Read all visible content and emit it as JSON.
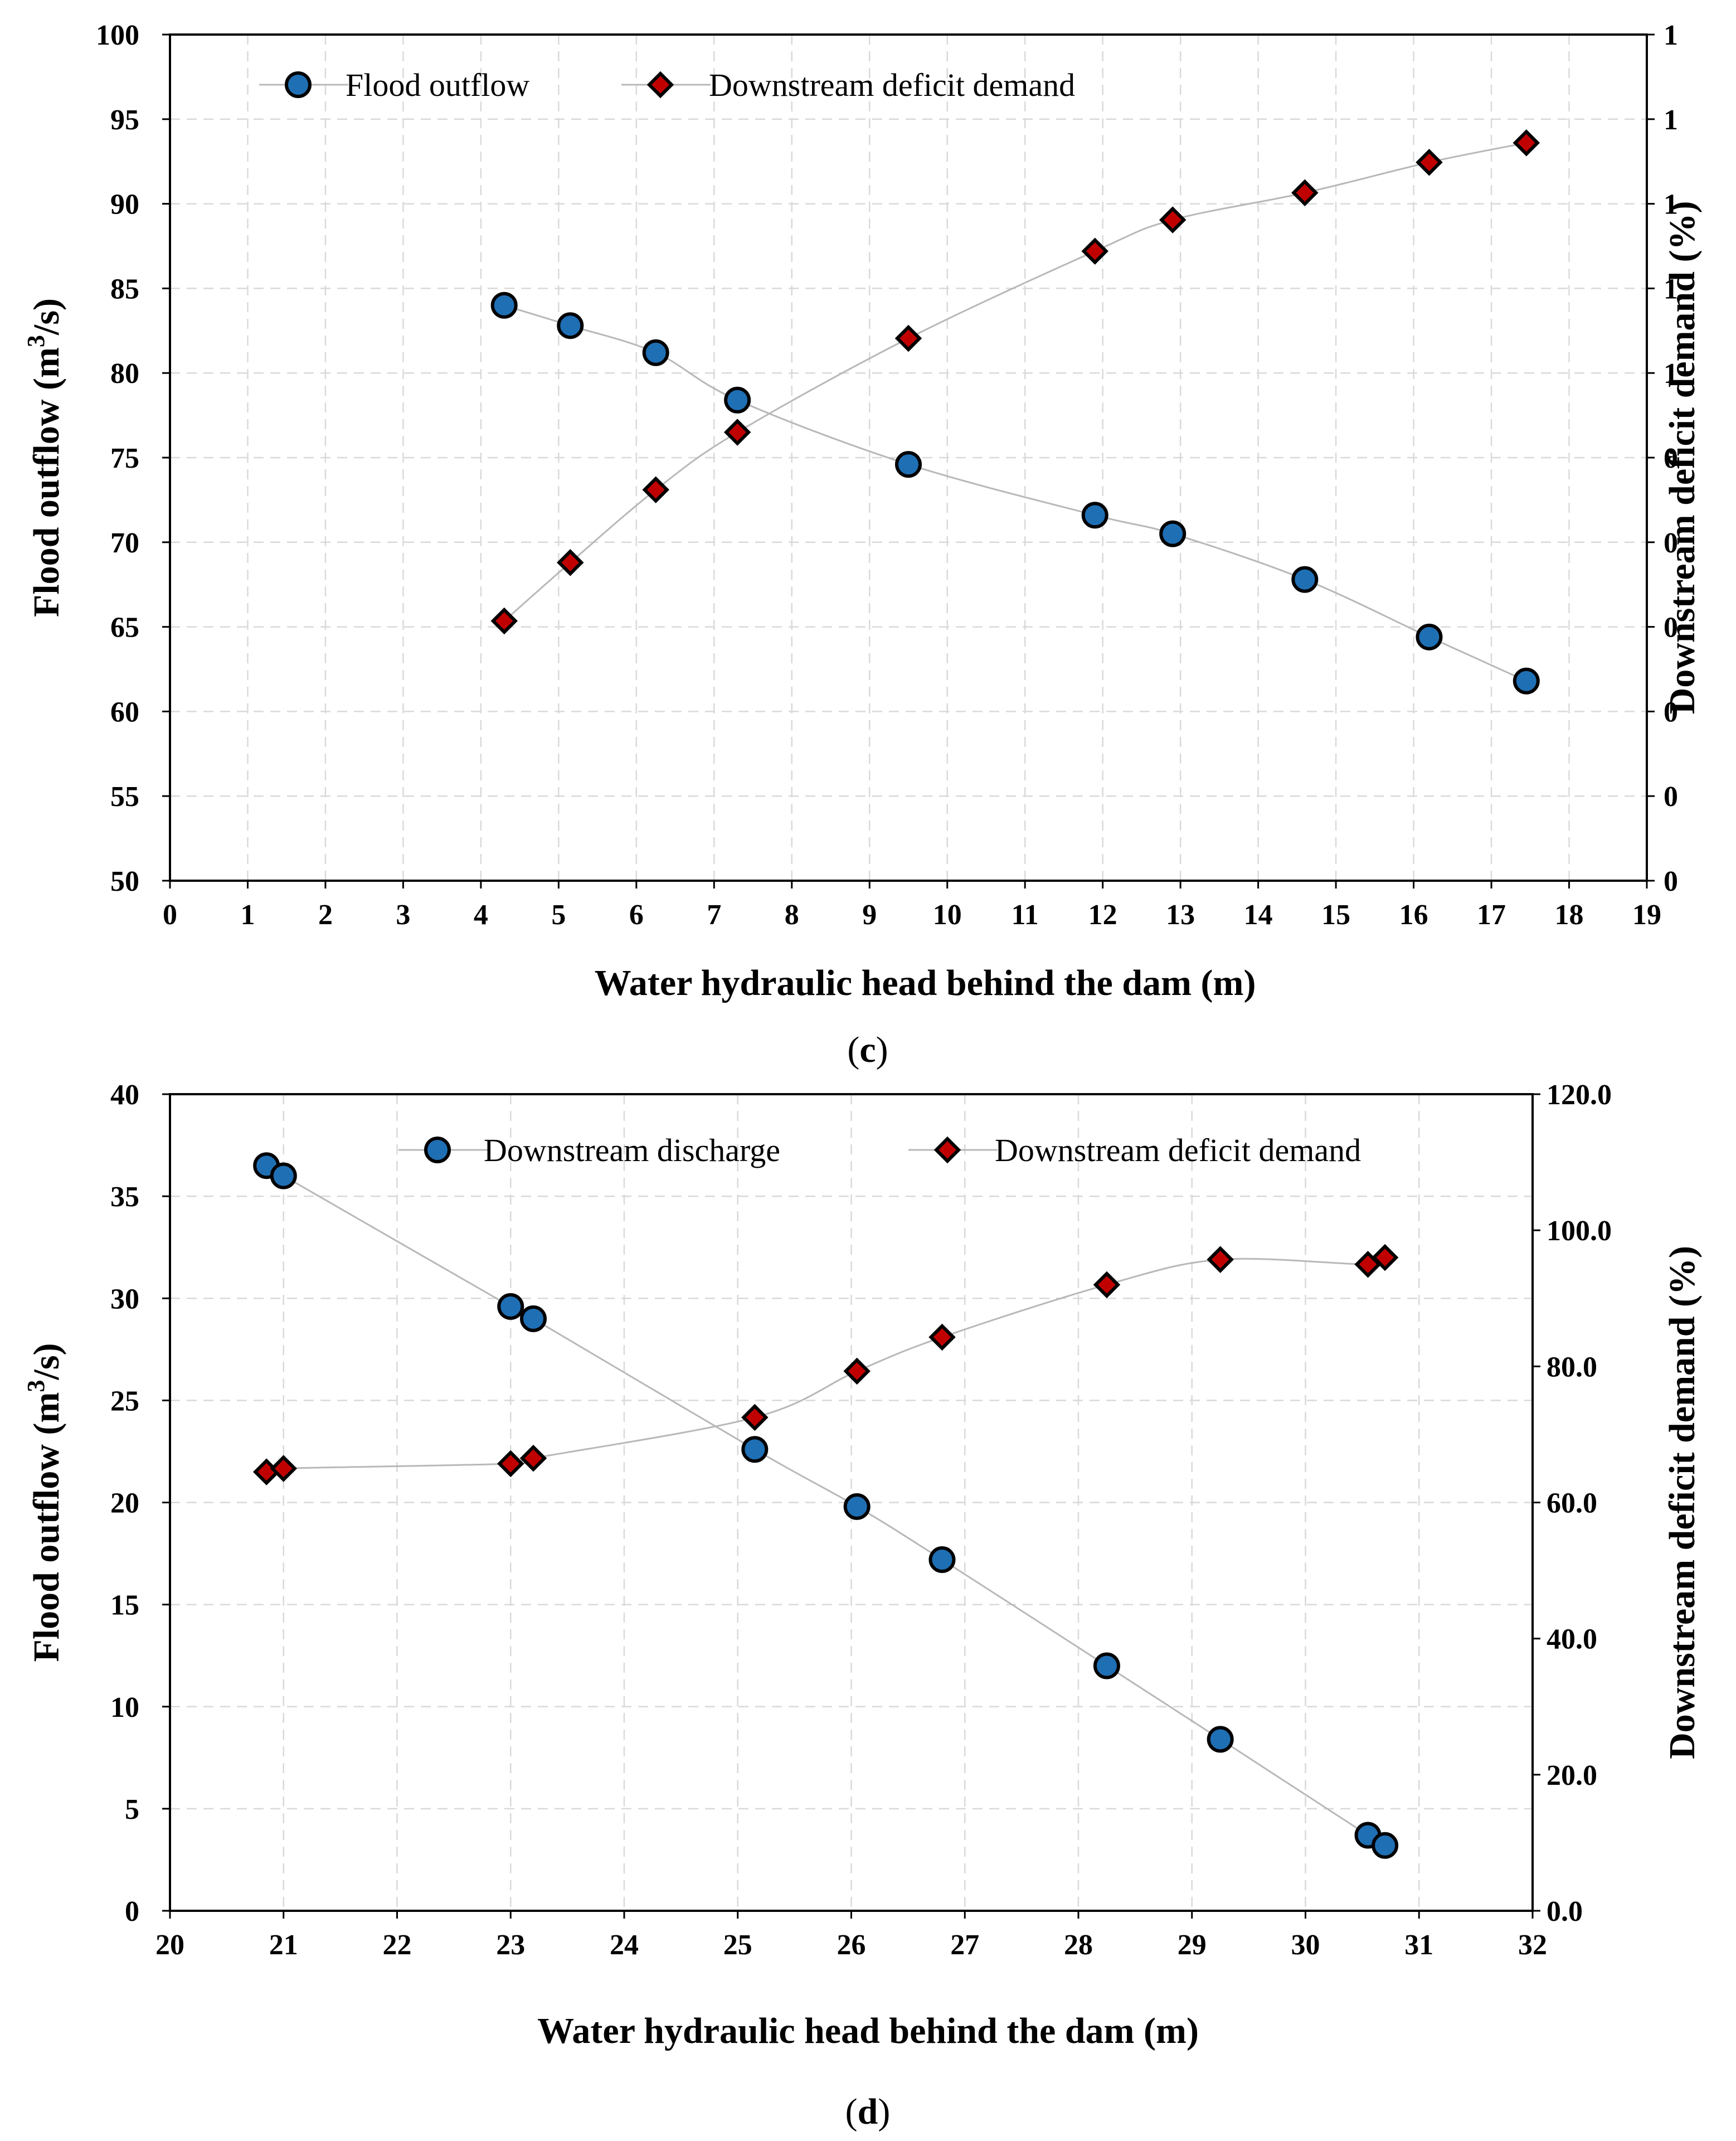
{
  "chart_data": [
    {
      "id": "c",
      "type": "line",
      "panel_label": "c",
      "xlabel": "Water hydraulic head behind the dam (m)",
      "ylabel": "Flood outflow (m3/s)",
      "ylabel_parts": {
        "main": "Flood outflow (m",
        "sup": "3",
        "end": "/s)"
      },
      "y2label": "Downstream deficit demand (%)",
      "xlim": [
        0,
        19
      ],
      "ylim": [
        50,
        100
      ],
      "y2lim": [
        0,
        1
      ],
      "x_ticks": [
        "0",
        "1",
        "2",
        "3",
        "4",
        "5",
        "6",
        "7",
        "8",
        "9",
        "10",
        "11",
        "12",
        "13",
        "14",
        "15",
        "16",
        "17",
        "18",
        "19"
      ],
      "y_ticks": [
        "50",
        "55",
        "60",
        "65",
        "70",
        "75",
        "80",
        "85",
        "90",
        "95",
        "100"
      ],
      "y2_ticks": [
        "0",
        "0",
        "0",
        "0",
        "0",
        "0",
        "1",
        "1",
        "1",
        "1",
        "1"
      ],
      "legend_position": "top-left",
      "series": [
        {
          "name": "Flood outflow",
          "axis": "left",
          "marker": "circle",
          "marker_color": "#1f6fb4",
          "x": [
            4.3,
            5.15,
            6.25,
            7.3,
            9.5,
            11.9,
            12.9,
            14.6,
            16.2,
            17.45
          ],
          "y": [
            84.0,
            82.8,
            81.2,
            78.4,
            74.6,
            71.6,
            70.5,
            67.8,
            64.4,
            61.8
          ]
        },
        {
          "name": "Downstream deficit demand",
          "axis": "right",
          "marker": "diamond",
          "marker_color": "#c00000",
          "x": [
            4.3,
            5.15,
            6.25,
            7.3,
            9.5,
            11.9,
            12.9,
            14.6,
            16.2,
            17.45
          ],
          "y": [
            0.307,
            0.376,
            0.462,
            0.53,
            0.641,
            0.744,
            0.781,
            0.813,
            0.849,
            0.872
          ]
        }
      ]
    },
    {
      "id": "d",
      "type": "line",
      "panel_label": "d",
      "xlabel": "Water hydraulic head behind the dam (m)",
      "ylabel": "Flood outflow (m3/s)",
      "ylabel_parts": {
        "main": "Flood outflow (m",
        "sup": "3",
        "end": "/s)"
      },
      "y2label": "Downstream deficit demand (%)",
      "xlim": [
        20,
        32
      ],
      "ylim": [
        0,
        40
      ],
      "y2lim": [
        0,
        120
      ],
      "x_ticks": [
        "20",
        "21",
        "22",
        "23",
        "24",
        "25",
        "26",
        "27",
        "28",
        "29",
        "30",
        "31",
        "32"
      ],
      "y_ticks": [
        "0",
        "5",
        "10",
        "15",
        "20",
        "25",
        "30",
        "35",
        "40"
      ],
      "y2_ticks": [
        "0.0",
        "20.0",
        "40.0",
        "60.0",
        "80.0",
        "100.0",
        "120.0"
      ],
      "legend_position": "top-center",
      "series": [
        {
          "name": "Downstream discharge",
          "axis": "left",
          "marker": "circle",
          "marker_color": "#1f6fb4",
          "x": [
            20.85,
            21.0,
            23.0,
            23.2,
            25.15,
            26.05,
            26.8,
            28.25,
            29.25,
            30.55,
            30.7
          ],
          "y": [
            36.5,
            36.0,
            29.6,
            29.0,
            22.6,
            19.8,
            17.2,
            12.0,
            8.4,
            3.7,
            3.2
          ]
        },
        {
          "name": "Downstream deficit demand",
          "axis": "right",
          "marker": "diamond",
          "marker_color": "#c00000",
          "x": [
            20.85,
            21.0,
            23.0,
            23.2,
            25.15,
            26.05,
            26.8,
            28.25,
            29.25,
            30.55,
            30.7
          ],
          "y": [
            64.5,
            65.0,
            65.7,
            66.5,
            72.5,
            79.3,
            84.3,
            92.0,
            95.7,
            95.0,
            96.0
          ]
        }
      ]
    }
  ]
}
